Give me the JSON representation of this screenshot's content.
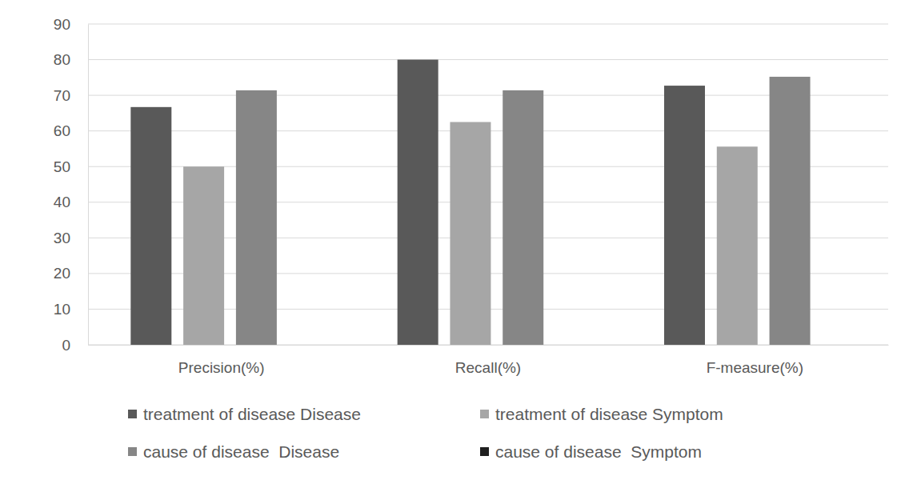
{
  "chart_data": {
    "type": "bar",
    "categories": [
      "Precision(%)",
      "Recall(%)",
      "F-measure(%)"
    ],
    "series": [
      {
        "name": "treatment of disease Disease",
        "color": "#595959",
        "values": [
          66.7,
          80,
          72.7
        ]
      },
      {
        "name": "treatment of disease Symptom",
        "color": "#a6a6a6",
        "values": [
          50,
          62.5,
          55.6
        ]
      },
      {
        "name": "cause of disease  Disease",
        "color": "#868686",
        "values": [
          71.4,
          71.4,
          75.2
        ]
      },
      {
        "name": "cause of disease  Symptom",
        "color": "#1f1f1f",
        "values": [
          0,
          0,
          0
        ]
      }
    ],
    "ylim": [
      0,
      90
    ],
    "yticks": [
      0,
      10,
      20,
      30,
      40,
      50,
      60,
      70,
      80,
      90
    ],
    "grid": true,
    "legend": "bottom"
  }
}
